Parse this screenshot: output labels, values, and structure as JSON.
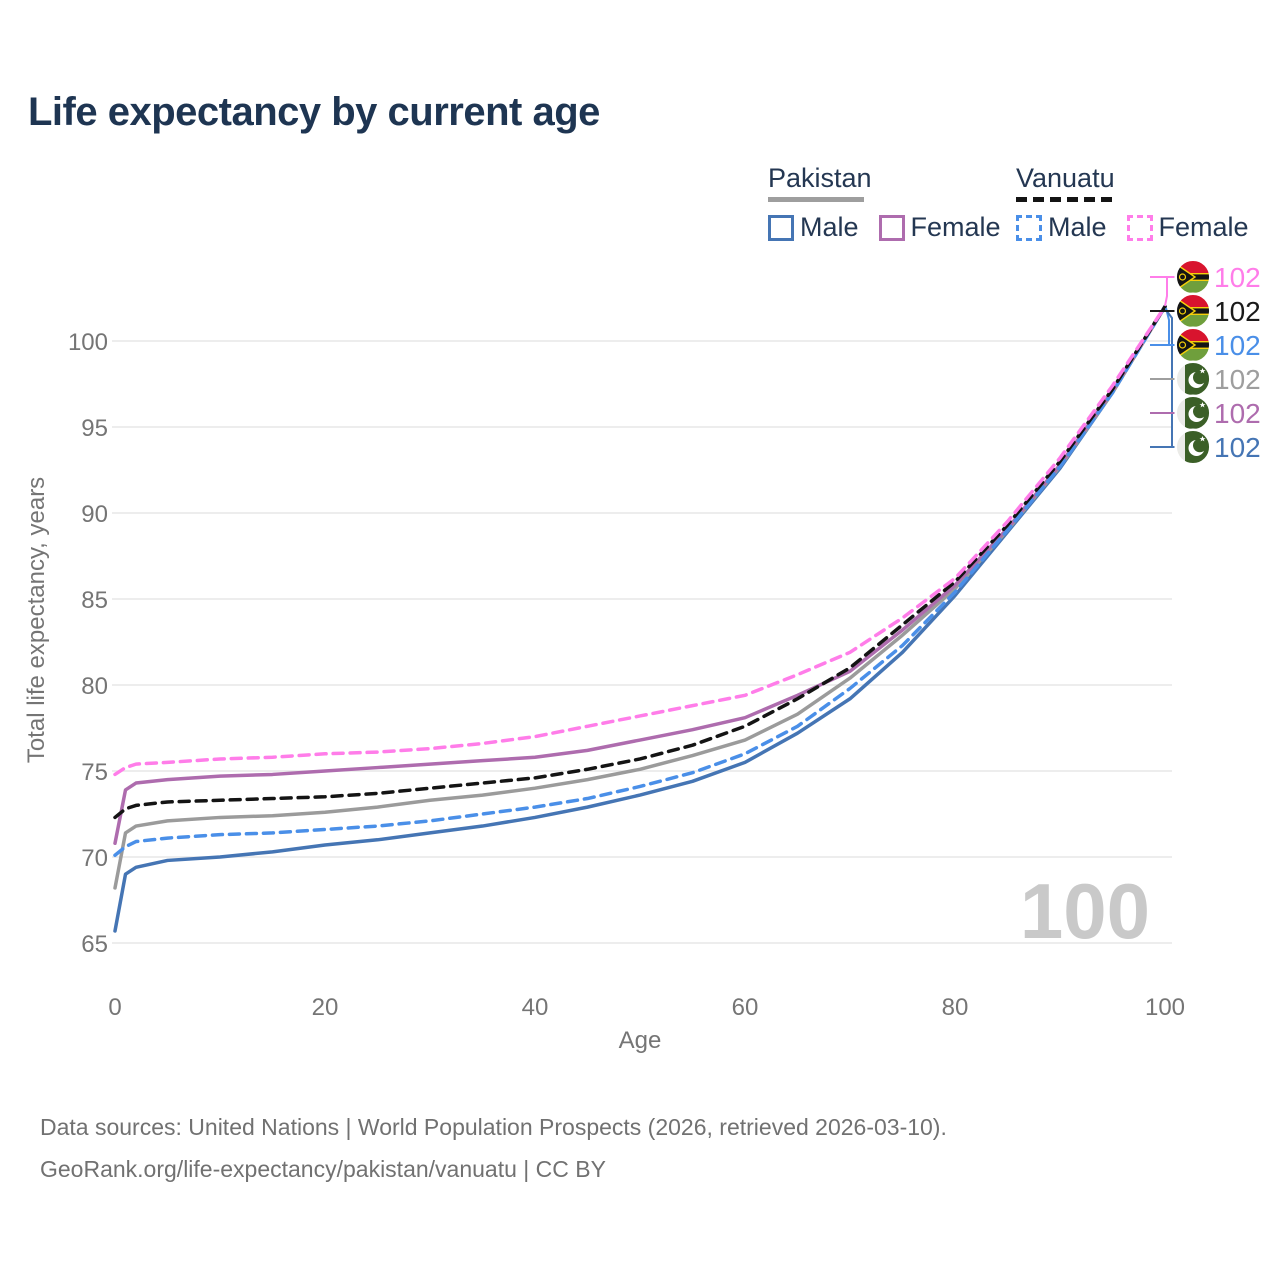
{
  "title": "Life expectancy by current age",
  "legend": {
    "groups": [
      {
        "id": "pakistan",
        "label": "Pakistan",
        "line_style": "solid",
        "line_color": "#9e9e9e",
        "items": [
          {
            "label": "Male",
            "color": "#4575b4",
            "dashed": false
          },
          {
            "label": "Female",
            "color": "#ae6cae",
            "dashed": false
          }
        ]
      },
      {
        "id": "vanuatu",
        "label": "Vanuatu",
        "line_style": "dashed",
        "line_color": "#141414",
        "items": [
          {
            "label": "Male",
            "color": "#4a8fe8",
            "dashed": true
          },
          {
            "label": "Female",
            "color": "#ff7de9",
            "dashed": true
          }
        ]
      }
    ]
  },
  "chart_data": {
    "type": "line",
    "title": "Life expectancy by current age",
    "xlabel": "Age",
    "ylabel": "Total life expectancy, years",
    "xlim": [
      0,
      100
    ],
    "ylim": [
      65,
      100
    ],
    "xticks": [
      0,
      20,
      40,
      60,
      80,
      100
    ],
    "yticks": [
      65,
      70,
      75,
      80,
      85,
      90,
      95,
      100
    ],
    "grid": "horizontal",
    "watermark": "100",
    "legend_position": "top-right",
    "x": [
      0,
      1,
      2,
      5,
      10,
      15,
      20,
      25,
      30,
      35,
      40,
      45,
      50,
      55,
      60,
      65,
      70,
      75,
      80,
      85,
      90,
      95,
      100
    ],
    "series": [
      {
        "id": "pakistan-male",
        "name": "Pakistan Male",
        "color": "#4575b4",
        "dash": false,
        "values": [
          65.7,
          69.0,
          69.4,
          69.8,
          70.0,
          70.3,
          70.7,
          71.0,
          71.4,
          71.8,
          72.3,
          72.9,
          73.6,
          74.4,
          75.5,
          77.2,
          79.2,
          81.9,
          85.2,
          88.9,
          92.6,
          97.0,
          102
        ]
      },
      {
        "id": "pakistan-all",
        "name": "Pakistan",
        "color": "#9b9b9b",
        "dash": false,
        "values": [
          68.2,
          71.4,
          71.8,
          72.1,
          72.3,
          72.4,
          72.6,
          72.9,
          73.3,
          73.6,
          74.0,
          74.5,
          75.1,
          75.9,
          76.8,
          78.3,
          80.4,
          82.9,
          85.6,
          89.0,
          92.7,
          97.0,
          102
        ]
      },
      {
        "id": "pakistan-female",
        "name": "Pakistan Female",
        "color": "#ae6cae",
        "dash": false,
        "values": [
          70.8,
          73.9,
          74.3,
          74.5,
          74.7,
          74.8,
          75.0,
          75.2,
          75.4,
          75.6,
          75.8,
          76.2,
          76.8,
          77.4,
          78.1,
          79.4,
          80.8,
          83.2,
          85.8,
          89.1,
          92.8,
          97.1,
          102
        ]
      },
      {
        "id": "vanuatu-male",
        "name": "Vanuatu Male",
        "color": "#4a8fe8",
        "dash": true,
        "values": [
          70.1,
          70.6,
          70.9,
          71.1,
          71.3,
          71.4,
          71.6,
          71.8,
          72.1,
          72.5,
          72.9,
          73.4,
          74.1,
          74.9,
          76.0,
          77.6,
          79.8,
          82.3,
          85.4,
          89.0,
          92.7,
          97.0,
          102
        ]
      },
      {
        "id": "vanuatu-all",
        "name": "Vanuatu",
        "color": "#141414",
        "dash": true,
        "values": [
          72.3,
          72.8,
          73.0,
          73.2,
          73.3,
          73.4,
          73.5,
          73.7,
          74.0,
          74.3,
          74.6,
          75.1,
          75.7,
          76.5,
          77.6,
          79.2,
          81.0,
          83.5,
          86.0,
          89.3,
          93.0,
          97.2,
          102
        ]
      },
      {
        "id": "vanuatu-female",
        "name": "Vanuatu Female",
        "color": "#ff7de9",
        "dash": true,
        "values": [
          74.8,
          75.2,
          75.4,
          75.5,
          75.7,
          75.8,
          76.0,
          76.1,
          76.3,
          76.6,
          77.0,
          77.6,
          78.2,
          78.8,
          79.4,
          80.6,
          81.9,
          83.9,
          86.2,
          89.5,
          93.2,
          97.4,
          102
        ]
      }
    ]
  },
  "right_labels": [
    {
      "series": "vanuatu-female",
      "flag": "vanuatu",
      "value": "102",
      "color": "#ff7de9"
    },
    {
      "series": "vanuatu-all",
      "flag": "vanuatu",
      "value": "102",
      "color": "#1a1a1a"
    },
    {
      "series": "vanuatu-male",
      "flag": "vanuatu",
      "value": "102",
      "color": "#4a8fe8"
    },
    {
      "series": "pakistan-all",
      "flag": "pakistan",
      "value": "102",
      "color": "#9e9e9e"
    },
    {
      "series": "pakistan-female",
      "flag": "pakistan",
      "value": "102",
      "color": "#ae6cae"
    },
    {
      "series": "pakistan-male",
      "flag": "pakistan",
      "value": "102",
      "color": "#4575b4"
    }
  ],
  "footer": {
    "line1": "Data sources: United Nations | World Population Prospects (2026, retrieved 2026-03-10).",
    "line2": "GeoRank.org/life-expectancy/pakistan/vanuatu | CC BY"
  }
}
